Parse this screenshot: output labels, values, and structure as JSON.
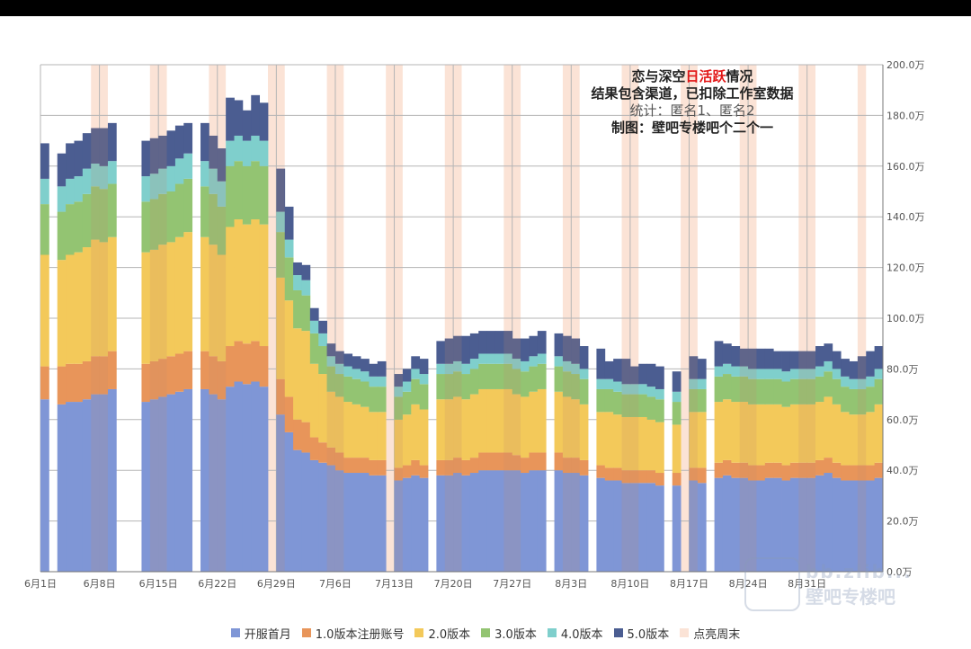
{
  "title": {
    "line1_a": "恋与深空",
    "line1_highlight": "日活跃",
    "line1_b": "情况",
    "line2": "结果包含渠道，已扣除工作室数据",
    "line3": "统计：匿名1、匿名2",
    "line4": "制图：壁吧专楼吧个二个一"
  },
  "watermark": {
    "text1": "bb.zlib...",
    "text2": "壁吧专楼吧"
  },
  "colors": {
    "series": [
      "#7f96d6",
      "#e8955a",
      "#f3c95a",
      "#93c472",
      "#7fcfcc",
      "#4b5d91"
    ],
    "weekend": "#fbe3d6",
    "grid": "#b5b5b5",
    "axis_text": "#555555"
  },
  "legend": [
    {
      "name": "开服首月",
      "color": "#7f96d6"
    },
    {
      "name": "1.0版本注册账号",
      "color": "#e8955a"
    },
    {
      "name": "2.0版本",
      "color": "#f3c95a"
    },
    {
      "name": "3.0版本",
      "color": "#93c472"
    },
    {
      "name": "4.0版本",
      "color": "#7fcfcc"
    },
    {
      "name": "5.0版本",
      "color": "#4b5d91"
    },
    {
      "name": "点亮周末",
      "color": "#fbe3d6"
    }
  ],
  "chart_data": {
    "type": "bar",
    "stacked": true,
    "y_unit": "万",
    "ylim": [
      0,
      200
    ],
    "ylabel": "",
    "xlabel": "",
    "grid": true,
    "y_axis_position": "right",
    "legend_position": "bottom",
    "title": "恋与深空日活跃情况",
    "y_ticks": [
      "0.0万",
      "20.0万",
      "40.0万",
      "60.0万",
      "80.0万",
      "100.0万",
      "120.0万",
      "140.0万",
      "160.0万",
      "180.0万",
      "200.0万"
    ],
    "x_ticks": [
      "6月1日",
      "6月8日",
      "6月15日",
      "6月22日",
      "6月29日",
      "7月6日",
      "7月13日",
      "7月20日",
      "7月27日",
      "8月3日",
      "8月10日",
      "8月17日",
      "8月24日",
      "8月31日"
    ],
    "series_names": [
      "开服首月",
      "1.0版本注册账号",
      "2.0版本",
      "3.0版本",
      "4.0版本",
      "5.0版本"
    ],
    "weekend_days": [
      6,
      7,
      13,
      14,
      20,
      21,
      27,
      28,
      34,
      35,
      41,
      42,
      48,
      49,
      55,
      56,
      62,
      63,
      69,
      70,
      76,
      77,
      83,
      84,
      90,
      91
    ],
    "weekend_last_day": 97,
    "days": [
      {
        "date": "6月1日",
        "v": [
          68,
          13,
          44,
          20,
          10,
          14
        ]
      },
      {
        "date": "6月2日",
        "v": null
      },
      {
        "date": "6月3日",
        "v": [
          66,
          15,
          42,
          19,
          10,
          13
        ]
      },
      {
        "date": "6月4日",
        "v": [
          67,
          15,
          43,
          20,
          10,
          14
        ]
      },
      {
        "date": "6月5日",
        "v": [
          67,
          15,
          44,
          20,
          10,
          14
        ]
      },
      {
        "date": "6月6日",
        "v": [
          68,
          15,
          45,
          21,
          10,
          14
        ]
      },
      {
        "date": "6月7日",
        "v": [
          70,
          15,
          46,
          21,
          9,
          14
        ]
      },
      {
        "date": "6月8日",
        "v": [
          70,
          15,
          45,
          21,
          9,
          15
        ]
      },
      {
        "date": "6月9日",
        "v": [
          72,
          15,
          45,
          21,
          9,
          15
        ]
      },
      {
        "date": "6月10日",
        "v": null
      },
      {
        "date": "6月11日",
        "v": null
      },
      {
        "date": "6月12日",
        "v": null
      },
      {
        "date": "6月13日",
        "v": [
          67,
          15,
          44,
          20,
          10,
          14
        ]
      },
      {
        "date": "6月14日",
        "v": [
          68,
          15,
          44,
          20,
          10,
          14
        ]
      },
      {
        "date": "6月15日",
        "v": [
          69,
          15,
          45,
          20,
          10,
          13
        ]
      },
      {
        "date": "6月16日",
        "v": [
          70,
          15,
          45,
          20,
          10,
          14
        ]
      },
      {
        "date": "6月17日",
        "v": [
          71,
          15,
          46,
          21,
          10,
          13
        ]
      },
      {
        "date": "6月18日",
        "v": [
          72,
          15,
          47,
          21,
          10,
          12
        ]
      },
      {
        "date": "6月19日",
        "v": null
      },
      {
        "date": "6月20日",
        "v": [
          72,
          15,
          45,
          20,
          10,
          15
        ]
      },
      {
        "date": "6月21日",
        "v": [
          70,
          15,
          44,
          20,
          10,
          13
        ]
      },
      {
        "date": "6月22日",
        "v": [
          68,
          15,
          42,
          19,
          10,
          13
        ]
      },
      {
        "date": "6月23日",
        "v": [
          73,
          16,
          47,
          24,
          10,
          17
        ]
      },
      {
        "date": "6月24日",
        "v": [
          75,
          16,
          48,
          23,
          10,
          14
        ]
      },
      {
        "date": "6月25日",
        "v": [
          74,
          16,
          47,
          23,
          10,
          12
        ]
      },
      {
        "date": "6月26日",
        "v": [
          75,
          16,
          48,
          23,
          10,
          16
        ]
      },
      {
        "date": "6月27日",
        "v": [
          73,
          16,
          48,
          23,
          10,
          15
        ]
      },
      {
        "date": "6月28日",
        "v": null
      },
      {
        "date": "6月29日",
        "v": [
          62,
          14,
          40,
          18,
          8,
          17
        ]
      },
      {
        "date": "6月30日",
        "v": [
          55,
          14,
          38,
          17,
          7,
          13
        ]
      },
      {
        "date": "7月1日",
        "v": [
          48,
          12,
          36,
          15,
          6,
          5
        ]
      },
      {
        "date": "7月2日",
        "v": [
          47,
          12,
          36,
          14,
          6,
          6
        ]
      },
      {
        "date": "7月3日",
        "v": [
          44,
          9,
          29,
          12,
          5,
          5
        ]
      },
      {
        "date": "7月4日",
        "v": [
          43,
          8,
          27,
          11,
          5,
          5
        ]
      },
      {
        "date": "7月5日",
        "v": [
          42,
          7,
          22,
          10,
          4,
          5
        ]
      },
      {
        "date": "7月6日",
        "v": [
          40,
          7,
          22,
          9,
          4,
          5
        ]
      },
      {
        "date": "7月7日",
        "v": [
          39,
          6,
          22,
          10,
          4,
          5
        ]
      },
      {
        "date": "7月8日",
        "v": [
          39,
          6,
          21,
          10,
          4,
          5
        ]
      },
      {
        "date": "7月9日",
        "v": [
          39,
          6,
          20,
          10,
          4,
          5
        ]
      },
      {
        "date": "7月10日",
        "v": [
          38,
          6,
          19,
          10,
          4,
          5
        ]
      },
      {
        "date": "7月11日",
        "v": [
          38,
          6,
          19,
          10,
          4,
          6
        ]
      },
      {
        "date": "7月12日",
        "v": null
      },
      {
        "date": "7月13日",
        "v": [
          36,
          5,
          19,
          9,
          4,
          5
        ]
      },
      {
        "date": "7月14日",
        "v": [
          37,
          5,
          20,
          9,
          4,
          5
        ]
      },
      {
        "date": "7月15日",
        "v": [
          38,
          6,
          22,
          10,
          4,
          5
        ]
      },
      {
        "date": "7月16日",
        "v": [
          37,
          5,
          22,
          10,
          4,
          6
        ]
      },
      {
        "date": "7月17日",
        "v": null
      },
      {
        "date": "7月18日",
        "v": [
          38,
          6,
          24,
          10,
          4,
          9
        ]
      },
      {
        "date": "7月19日",
        "v": [
          38,
          6,
          24,
          10,
          4,
          10
        ]
      },
      {
        "date": "7月20日",
        "v": [
          39,
          6,
          24,
          10,
          4,
          10
        ]
      },
      {
        "date": "7月21日",
        "v": [
          38,
          6,
          24,
          10,
          4,
          11
        ]
      },
      {
        "date": "7月22日",
        "v": [
          39,
          6,
          25,
          10,
          4,
          10
        ]
      },
      {
        "date": "7月23日",
        "v": [
          40,
          7,
          25,
          10,
          4,
          9
        ]
      },
      {
        "date": "7月24日",
        "v": [
          40,
          7,
          25,
          10,
          4,
          9
        ]
      },
      {
        "date": "7月25日",
        "v": [
          40,
          7,
          25,
          10,
          4,
          9
        ]
      },
      {
        "date": "7月26日",
        "v": [
          40,
          7,
          25,
          10,
          4,
          9
        ]
      },
      {
        "date": "7月27日",
        "v": [
          40,
          6,
          24,
          10,
          4,
          8
        ]
      },
      {
        "date": "7月28日",
        "v": [
          39,
          6,
          24,
          10,
          4,
          9
        ]
      },
      {
        "date": "7月29日",
        "v": [
          40,
          7,
          24,
          10,
          4,
          8
        ]
      },
      {
        "date": "7月30日",
        "v": [
          40,
          7,
          25,
          10,
          4,
          9
        ]
      },
      {
        "date": "7月31日",
        "v": null
      },
      {
        "date": "8月1日",
        "v": [
          40,
          7,
          24,
          10,
          4,
          9
        ]
      },
      {
        "date": "8月2日",
        "v": [
          39,
          6,
          24,
          10,
          4,
          10
        ]
      },
      {
        "date": "8月3日",
        "v": [
          39,
          6,
          23,
          10,
          4,
          10
        ]
      },
      {
        "date": "8月4日",
        "v": [
          38,
          6,
          22,
          10,
          4,
          9
        ]
      },
      {
        "date": "8月5日",
        "v": null
      },
      {
        "date": "8月6日",
        "v": [
          37,
          5,
          21,
          9,
          4,
          12
        ]
      },
      {
        "date": "8月7日",
        "v": [
          36,
          5,
          22,
          9,
          4,
          7
        ]
      },
      {
        "date": "8月8日",
        "v": [
          36,
          5,
          21,
          9,
          4,
          9
        ]
      },
      {
        "date": "8月9日",
        "v": [
          35,
          5,
          21,
          9,
          4,
          10
        ]
      },
      {
        "date": "8月10日",
        "v": [
          35,
          5,
          21,
          9,
          4,
          7
        ]
      },
      {
        "date": "8月11日",
        "v": [
          35,
          5,
          21,
          9,
          4,
          8
        ]
      },
      {
        "date": "8月12日",
        "v": [
          35,
          5,
          20,
          9,
          4,
          9
        ]
      },
      {
        "date": "8月13日",
        "v": [
          34,
          5,
          20,
          9,
          4,
          9
        ]
      },
      {
        "date": "8月14日",
        "v": null
      },
      {
        "date": "8月15日",
        "v": [
          34,
          5,
          19,
          9,
          4,
          8
        ]
      },
      {
        "date": "8月16日",
        "v": null
      },
      {
        "date": "8月17日",
        "v": [
          36,
          5,
          22,
          9,
          4,
          9
        ]
      },
      {
        "date": "8月18日",
        "v": [
          35,
          6,
          22,
          9,
          4,
          8
        ]
      },
      {
        "date": "8月19日",
        "v": null
      },
      {
        "date": "8月20日",
        "v": [
          37,
          6,
          24,
          10,
          4,
          10
        ]
      },
      {
        "date": "8月21日",
        "v": [
          38,
          6,
          24,
          10,
          4,
          8
        ]
      },
      {
        "date": "8月22日",
        "v": [
          37,
          6,
          24,
          10,
          4,
          8
        ]
      },
      {
        "date": "8月23日",
        "v": [
          37,
          6,
          24,
          10,
          4,
          7
        ]
      },
      {
        "date": "8月24日",
        "v": [
          36,
          6,
          24,
          10,
          4,
          8
        ]
      },
      {
        "date": "8月25日",
        "v": [
          36,
          6,
          24,
          10,
          4,
          8
        ]
      },
      {
        "date": "8月26日",
        "v": [
          37,
          6,
          23,
          10,
          4,
          8
        ]
      },
      {
        "date": "8月27日",
        "v": [
          37,
          6,
          23,
          10,
          4,
          7
        ]
      },
      {
        "date": "8月28日",
        "v": [
          36,
          6,
          23,
          10,
          4,
          8
        ]
      },
      {
        "date": "8月29日",
        "v": [
          37,
          6,
          23,
          10,
          4,
          7
        ]
      },
      {
        "date": "8月30日",
        "v": [
          37,
          6,
          23,
          10,
          4,
          7
        ]
      },
      {
        "date": "8月31日",
        "v": [
          37,
          6,
          23,
          10,
          4,
          7
        ]
      },
      {
        "date": "9月1日",
        "v": [
          38,
          6,
          23,
          10,
          4,
          8
        ]
      },
      {
        "date": "9月2日",
        "v": [
          39,
          6,
          24,
          10,
          4,
          7
        ]
      },
      {
        "date": "9月3日",
        "v": [
          37,
          6,
          23,
          10,
          4,
          7
        ]
      },
      {
        "date": "9月4日",
        "v": [
          36,
          6,
          21,
          10,
          4,
          7
        ]
      },
      {
        "date": "9月5日",
        "v": [
          36,
          6,
          20,
          10,
          4,
          7
        ]
      },
      {
        "date": "9月6日",
        "v": [
          36,
          6,
          20,
          10,
          4,
          9
        ]
      },
      {
        "date": "9月7日",
        "v": [
          36,
          6,
          21,
          10,
          4,
          10
        ]
      },
      {
        "date": "9月8日",
        "v": [
          37,
          6,
          23,
          10,
          4,
          9
        ]
      }
    ]
  }
}
